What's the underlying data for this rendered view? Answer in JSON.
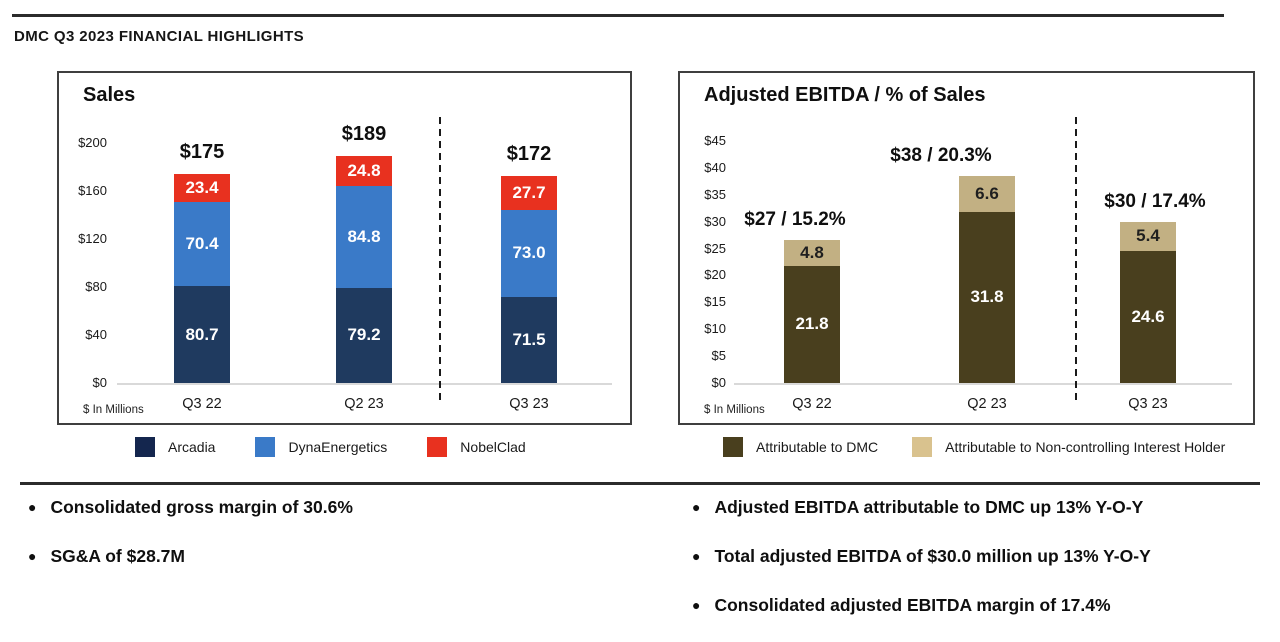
{
  "page": {
    "title": "DMC Q3 2023 FINANCIAL HIGHLIGHTS"
  },
  "chart_data": [
    {
      "id": "sales",
      "type": "bar",
      "stacked": true,
      "title": "Sales",
      "units": "$ In Millions",
      "categories": [
        "Q3 22",
        "Q2 23",
        "Q3 23"
      ],
      "series": [
        {
          "name": "Arcadia",
          "color": "#1F3A5F",
          "legend_color": "#14264E",
          "label_color": "#FFFFFF",
          "values": [
            80.7,
            79.2,
            71.5
          ]
        },
        {
          "name": "DynaEnergetics",
          "color": "#3A7AC8",
          "legend_color": "#3A7AC8",
          "label_color": "#FFFFFF",
          "values": [
            70.4,
            84.8,
            73.0
          ]
        },
        {
          "name": "NobelClad",
          "color": "#E8311F",
          "legend_color": "#E8311F",
          "label_color": "#FFFFFF",
          "values": [
            23.4,
            24.8,
            27.7
          ]
        }
      ],
      "totals": [
        "$175",
        "$189",
        "$172"
      ],
      "y_tick_labels": [
        "$0",
        "$40",
        "$80",
        "$120",
        "$160",
        "$200"
      ],
      "ylim": [
        0,
        200
      ],
      "grid": false,
      "legend_position": "bottom",
      "separator_note": "dashed vertical line between Q2 23 and Q3 23"
    },
    {
      "id": "ebitda",
      "type": "bar",
      "stacked": true,
      "title": "Adjusted EBITDA / % of Sales",
      "units": "$ In Millions",
      "categories": [
        "Q3 22",
        "Q2 23",
        "Q3 23"
      ],
      "series": [
        {
          "name": "Attributable to DMC",
          "color": "#493F1E",
          "legend_color": "#493F1E",
          "label_color": "#FFFFFF",
          "values": [
            21.8,
            31.8,
            24.6
          ]
        },
        {
          "name": "Attributable to Non-controlling Interest Holder",
          "color": "#C2B083",
          "legend_color": "#D9C28E",
          "label_color": "#1F1F1F",
          "values": [
            4.8,
            6.6,
            5.4
          ]
        }
      ],
      "totals": [
        "$27 / 15.2%",
        "$38 / 20.3%",
        "$30 / 17.4%"
      ],
      "y_tick_labels": [
        "$0",
        "$5",
        "$10",
        "$15",
        "$20",
        "$25",
        "$30",
        "$35",
        "$40",
        "$45"
      ],
      "ylim": [
        0,
        45
      ],
      "grid": false,
      "legend_position": "bottom",
      "separator_note": "dashed vertical line between Q2 23 and Q3 23"
    }
  ],
  "highlights": {
    "left": [
      "Consolidated gross margin of 30.6%",
      "SG&A of $28.7M"
    ],
    "right": [
      "Adjusted EBITDA attributable to DMC up 13% Y-O-Y",
      "Total adjusted EBITDA of $30.0 million up 13% Y-O-Y",
      "Consolidated adjusted EBITDA margin of 17.4%"
    ]
  }
}
